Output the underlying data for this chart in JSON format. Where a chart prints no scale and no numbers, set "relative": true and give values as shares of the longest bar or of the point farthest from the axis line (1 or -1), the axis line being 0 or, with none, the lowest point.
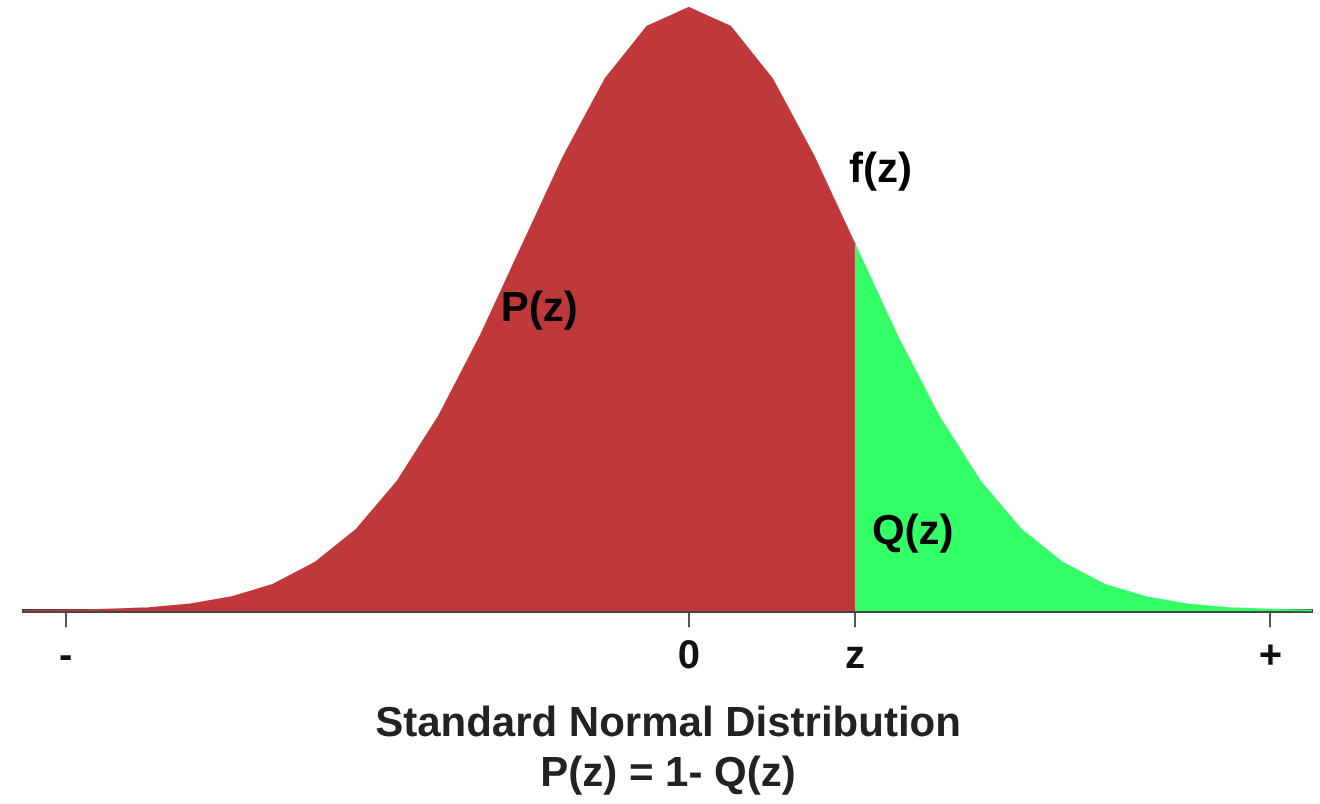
{
  "chart_data": {
    "type": "area",
    "title": "Standard Normal Distribution",
    "subtitle": "P(z) = 1- Q(z)",
    "relative": true,
    "grid": false,
    "legend": false,
    "marker": "none",
    "line_style": "solid",
    "categories": [
      null,
      "-",
      null,
      null,
      null,
      null,
      null,
      null,
      null,
      null,
      null,
      null,
      null,
      null,
      null,
      null,
      "0",
      null,
      null,
      null,
      "z",
      null,
      null,
      null,
      null,
      null,
      null,
      null,
      null,
      null,
      "+",
      null
    ],
    "series": [
      {
        "color": "#c0393a",
        "values": [
          0.0003,
          0.0009,
          0.0022,
          0.005,
          0.011,
          0.023,
          0.044,
          0.08,
          0.135,
          0.216,
          0.325,
          0.458,
          0.607,
          0.755,
          0.883,
          0.969,
          1,
          0.969,
          0.883,
          0.755,
          0.607,
          null,
          null,
          null,
          null,
          null,
          null,
          null,
          null,
          null,
          null,
          null
        ]
      },
      {
        "color": "#33ff66",
        "values": [
          null,
          null,
          null,
          null,
          null,
          null,
          null,
          null,
          null,
          null,
          null,
          null,
          null,
          null,
          null,
          null,
          null,
          null,
          null,
          null,
          0.607,
          0.458,
          0.325,
          0.216,
          0.135,
          0.08,
          0.044,
          0.023,
          0.011,
          0.005,
          0.0022,
          0.0009
        ]
      }
    ],
    "annotations": [
      "P(z)",
      "f(z)",
      "Q(z)"
    ]
  }
}
